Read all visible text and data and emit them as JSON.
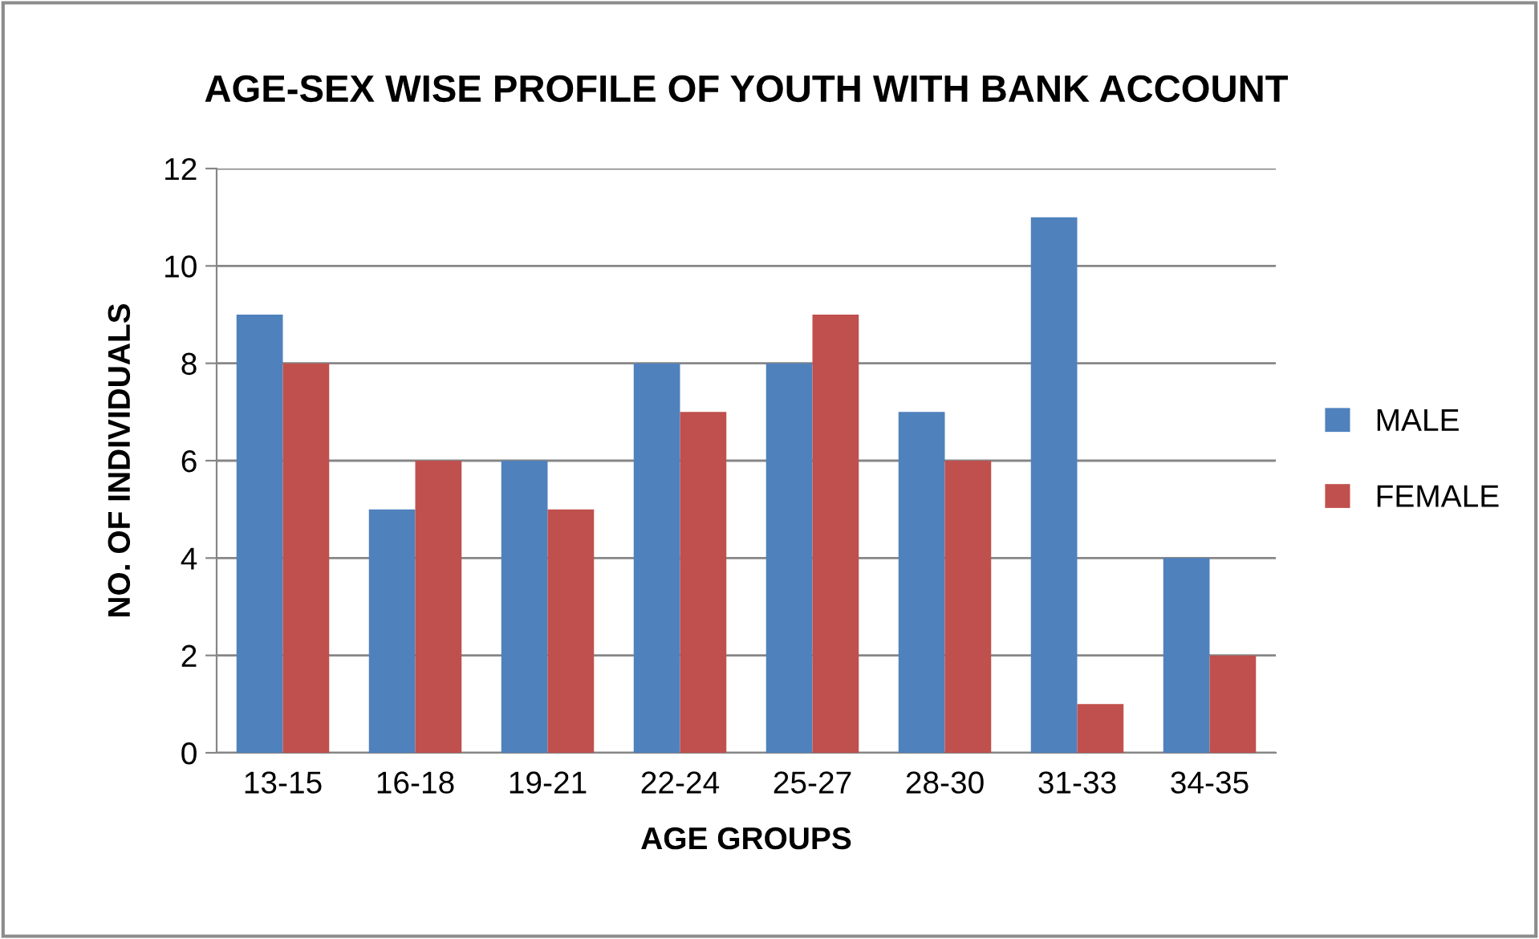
{
  "chart_data": {
    "type": "bar",
    "title": "AGE-SEX WISE PROFILE OF YOUTH WITH BANK ACCOUNT",
    "xlabel": "AGE GROUPS",
    "ylabel": "NO. OF INDIVIDUALS",
    "categories": [
      "13-15",
      "16-18",
      "19-21",
      "22-24",
      "25-27",
      "28-30",
      "31-33",
      "34-35"
    ],
    "series": [
      {
        "name": "MALE",
        "color": "#4f81bd",
        "values": [
          9,
          5,
          6,
          8,
          8,
          7,
          11,
          4
        ]
      },
      {
        "name": "FEMALE",
        "color": "#c0504d",
        "values": [
          8,
          6,
          5,
          7,
          9,
          6,
          1,
          2
        ]
      }
    ],
    "ylim": [
      0,
      12
    ],
    "yticks": [
      0,
      2,
      4,
      6,
      8,
      10,
      12
    ],
    "grid": "y",
    "legend": "right"
  }
}
